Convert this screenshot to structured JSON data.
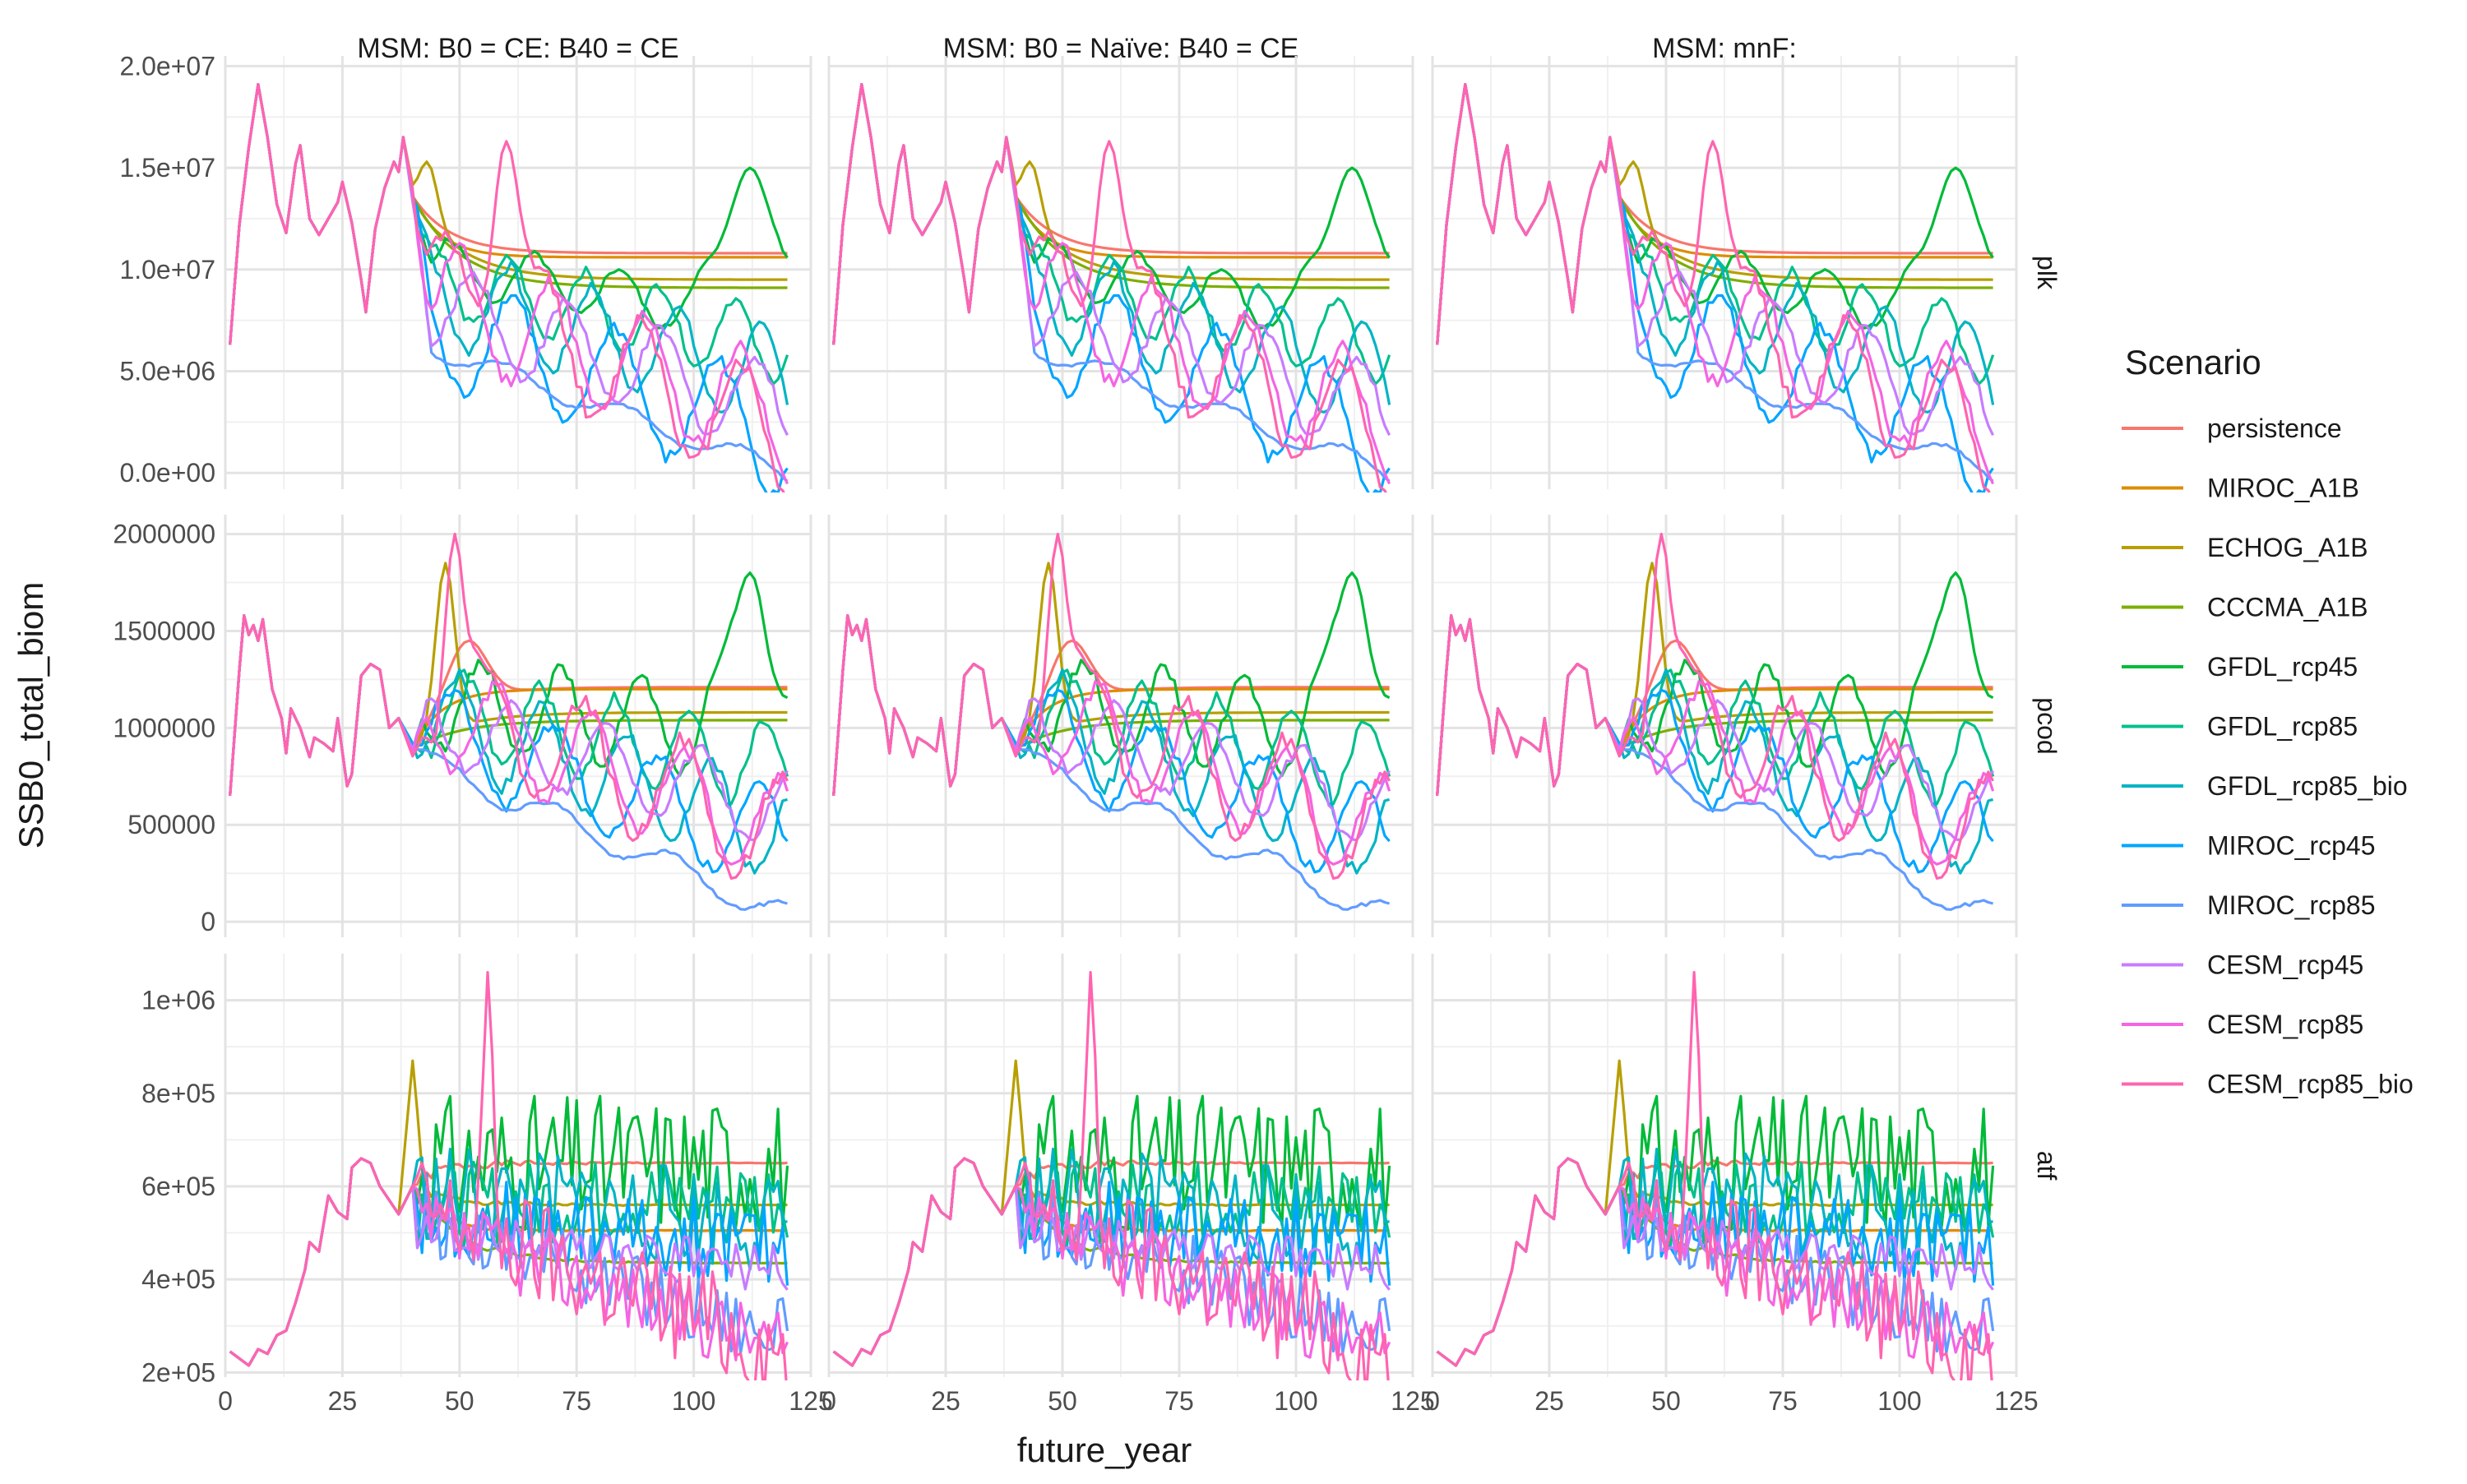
{
  "chart_data": {
    "type": "line",
    "facet_cols": [
      "MSM: B0 = CE: B40 = CE",
      "MSM: B0 = Naïve: B40 = CE",
      "MSM: mnF:"
    ],
    "facet_rows": [
      "plk",
      "pcod",
      "atf"
    ],
    "xlabel": "future_year",
    "ylabel": "SSB0_total_biom",
    "x_range": [
      0,
      125
    ],
    "x_ticks": [
      0,
      25,
      50,
      75,
      100,
      125
    ],
    "grid": true,
    "legend": {
      "title": "Scenario",
      "placement": "right",
      "items": [
        {
          "name": "persistence",
          "color": "#F8766D"
        },
        {
          "name": "MIROC_A1B",
          "color": "#DE8C00"
        },
        {
          "name": "ECHOG_A1B",
          "color": "#B79F00"
        },
        {
          "name": "CCCMA_A1B",
          "color": "#7CAE00"
        },
        {
          "name": "GFDL_rcp45",
          "color": "#00BA38"
        },
        {
          "name": "GFDL_rcp85",
          "color": "#00C08B"
        },
        {
          "name": "GFDL_rcp85_bio",
          "color": "#00B4C4"
        },
        {
          "name": "MIROC_rcp45",
          "color": "#00A5FF"
        },
        {
          "name": "MIROC_rcp85",
          "color": "#619CFF"
        },
        {
          "name": "CESM_rcp45",
          "color": "#C77CFF"
        },
        {
          "name": "CESM_rcp85",
          "color": "#F564E3"
        },
        {
          "name": "CESM_rcp85_bio",
          "color": "#FF64B0"
        }
      ]
    },
    "rows": [
      {
        "species": "plk",
        "ylim": [
          -800000,
          20500000
        ],
        "y_ticks": [
          0,
          5000000,
          10000000,
          15000000,
          20000000
        ],
        "y_tick_labels": [
          "0.0e+00",
          "5.0e+06",
          "1.0e+07",
          "1.5e+07",
          "2.0e+07"
        ],
        "hist": [
          [
            1,
            6300000
          ],
          [
            3,
            12200000
          ],
          [
            5,
            16000000
          ],
          [
            7,
            19100000
          ],
          [
            9,
            16500000
          ],
          [
            11,
            13200000
          ],
          [
            13,
            11800000
          ],
          [
            15,
            15200000
          ],
          [
            16,
            16100000
          ],
          [
            18,
            12500000
          ],
          [
            20,
            11700000
          ],
          [
            22,
            12500000
          ],
          [
            24,
            13300000
          ],
          [
            25,
            14300000
          ],
          [
            27,
            12300000
          ],
          [
            29,
            9500000
          ],
          [
            30,
            7900000
          ],
          [
            32,
            12000000
          ],
          [
            34,
            14000000
          ],
          [
            36,
            15300000
          ],
          [
            37,
            14800000
          ],
          [
            38,
            16500000
          ],
          [
            40,
            13600000
          ]
        ],
        "future": [
          {
            "start": 13600000,
            "type": "flat",
            "level": 10800000,
            "tau": 8
          },
          {
            "start": 13600000,
            "type": "flat",
            "level": 10600000,
            "tau": 6
          },
          {
            "start": 13600000,
            "type": "flat",
            "level": 9500000,
            "tau": 10,
            "bumps": [
              [
                43,
                15300000,
                2
              ]
            ]
          },
          {
            "start": 13600000,
            "type": "flat",
            "level": 9100000,
            "tau": 10
          },
          {
            "start": 13600000,
            "type": "fluct",
            "level": 10400000,
            "end": 7400000,
            "amp": 1300000,
            "per": 18,
            "seed": 5,
            "bumps": [
              [
                112,
                15000000,
                5
              ]
            ]
          },
          {
            "start": 13600000,
            "type": "fluct",
            "level": 9600000,
            "end": 6300000,
            "amp": 1800000,
            "per": 16,
            "seed": 6
          },
          {
            "start": 13600000,
            "type": "fluct",
            "level": 9000000,
            "end": 4500000,
            "amp": 2300000,
            "per": 18,
            "seed": 7
          },
          {
            "start": 13600000,
            "type": "fluct",
            "level": 7500000,
            "end": 1700000,
            "amp": 2800000,
            "per": 22,
            "seed": 8
          },
          {
            "start": 13600000,
            "type": "fluct",
            "level": 6500000,
            "end": 30000,
            "amp": 500000,
            "per": 25,
            "seed": 9
          },
          {
            "start": 13600000,
            "type": "fluct",
            "level": 8500000,
            "end": 3000000,
            "amp": 2200000,
            "per": 20,
            "seed": 10
          },
          {
            "start": 13600000,
            "type": "fluct",
            "level": 9000000,
            "end": 2600000,
            "amp": 2800000,
            "per": 20,
            "seed": 11
          },
          {
            "start": 13600000,
            "type": "fluct",
            "level": 9500000,
            "end": 1500000,
            "amp": 3000000,
            "per": 21,
            "seed": 12,
            "bumps": [
              [
                60,
                16300000,
                3
              ]
            ]
          }
        ]
      },
      {
        "species": "pcod",
        "ylim": [
          -80000,
          2100000
        ],
        "y_ticks": [
          0,
          500000,
          1000000,
          1500000,
          2000000
        ],
        "y_tick_labels": [
          "0",
          "500000",
          "1000000",
          "1500000",
          "2000000"
        ],
        "hist": [
          [
            1,
            650000
          ],
          [
            3,
            1300000
          ],
          [
            4,
            1580000
          ],
          [
            5,
            1480000
          ],
          [
            6,
            1530000
          ],
          [
            7,
            1450000
          ],
          [
            8,
            1560000
          ],
          [
            10,
            1200000
          ],
          [
            12,
            1050000
          ],
          [
            13,
            870000
          ],
          [
            14,
            1100000
          ],
          [
            16,
            1000000
          ],
          [
            18,
            850000
          ],
          [
            19,
            950000
          ],
          [
            21,
            920000
          ],
          [
            23,
            880000
          ],
          [
            24,
            1050000
          ],
          [
            26,
            700000
          ],
          [
            27,
            760000
          ],
          [
            29,
            1270000
          ],
          [
            31,
            1330000
          ],
          [
            33,
            1300000
          ],
          [
            35,
            1000000
          ],
          [
            37,
            1050000
          ],
          [
            40,
            890000
          ]
        ],
        "future": [
          {
            "start": 890000,
            "type": "flat",
            "level": 1210000,
            "tau": 8,
            "bumps": [
              [
                52,
                1450000,
                4
              ]
            ]
          },
          {
            "start": 890000,
            "type": "flat",
            "level": 1200000,
            "tau": 6
          },
          {
            "start": 890000,
            "type": "flat",
            "level": 1080000,
            "tau": 10,
            "bumps": [
              [
                47,
                1850000,
                2
              ]
            ]
          },
          {
            "start": 890000,
            "type": "flat",
            "level": 1040000,
            "tau": 10
          },
          {
            "start": 890000,
            "type": "fluct",
            "level": 1150000,
            "end": 950000,
            "amp": 230000,
            "per": 17,
            "seed": 15,
            "bumps": [
              [
                112,
                1800000,
                4
              ]
            ]
          },
          {
            "start": 890000,
            "type": "fluct",
            "level": 1100000,
            "end": 800000,
            "amp": 220000,
            "per": 16,
            "seed": 16
          },
          {
            "start": 890000,
            "type": "fluct",
            "level": 1100000,
            "end": 450000,
            "amp": 250000,
            "per": 18,
            "seed": 17
          },
          {
            "start": 890000,
            "type": "fluct",
            "level": 1000000,
            "end": 400000,
            "amp": 250000,
            "per": 22,
            "seed": 18
          },
          {
            "start": 890000,
            "type": "fluct",
            "level": 850000,
            "end": 30000,
            "amp": 70000,
            "per": 25,
            "seed": 19
          },
          {
            "start": 890000,
            "type": "fluct",
            "level": 1050000,
            "end": 580000,
            "amp": 200000,
            "per": 20,
            "seed": 20
          },
          {
            "start": 890000,
            "type": "fluct",
            "level": 1100000,
            "end": 480000,
            "amp": 250000,
            "per": 20,
            "seed": 21
          },
          {
            "start": 890000,
            "type": "fluct",
            "level": 1200000,
            "end": 420000,
            "amp": 300000,
            "per": 21,
            "seed": 22,
            "bumps": [
              [
                49,
                2000000,
                2
              ]
            ]
          }
        ]
      },
      {
        "species": "atf",
        "ylim": [
          190000,
          1100000
        ],
        "y_ticks": [
          200000,
          400000,
          600000,
          800000,
          1000000
        ],
        "y_tick_labels": [
          "2e+05",
          "4e+05",
          "6e+05",
          "8e+05",
          "1e+06"
        ],
        "hist": [
          [
            1,
            245000
          ],
          [
            3,
            230000
          ],
          [
            5,
            215000
          ],
          [
            7,
            250000
          ],
          [
            9,
            240000
          ],
          [
            11,
            280000
          ],
          [
            13,
            290000
          ],
          [
            15,
            350000
          ],
          [
            17,
            420000
          ],
          [
            18,
            480000
          ],
          [
            20,
            460000
          ],
          [
            22,
            580000
          ],
          [
            24,
            545000
          ],
          [
            26,
            530000
          ],
          [
            27,
            640000
          ],
          [
            29,
            660000
          ],
          [
            31,
            650000
          ],
          [
            33,
            600000
          ],
          [
            35,
            570000
          ],
          [
            37,
            540000
          ],
          [
            40,
            600000
          ]
        ],
        "future": [
          {
            "start": 600000,
            "type": "flat",
            "level": 650000,
            "tau": 5,
            "jit": 30000
          },
          {
            "start": 600000,
            "type": "flat",
            "level": 505000,
            "tau": 6,
            "jit": 20000
          },
          {
            "start": 600000,
            "type": "flat",
            "level": 560000,
            "tau": 8,
            "jit": 20000,
            "bumps": [
              [
                40,
                870000,
                1
              ]
            ]
          },
          {
            "start": 600000,
            "type": "flat",
            "level": 435000,
            "tau": 10,
            "jit": 25000
          },
          {
            "start": 600000,
            "type": "jag",
            "level": 650000,
            "end": 650000,
            "amp": 150000,
            "seed": 31
          },
          {
            "start": 600000,
            "type": "jag",
            "level": 560000,
            "end": 580000,
            "amp": 90000,
            "seed": 32
          },
          {
            "start": 600000,
            "type": "jag",
            "level": 590000,
            "end": 520000,
            "amp": 110000,
            "seed": 33
          },
          {
            "start": 600000,
            "type": "jag",
            "level": 540000,
            "end": 470000,
            "amp": 90000,
            "seed": 34
          },
          {
            "start": 600000,
            "type": "jag",
            "level": 540000,
            "end": 280000,
            "amp": 80000,
            "seed": 35
          },
          {
            "start": 600000,
            "type": "jag",
            "level": 500000,
            "end": 420000,
            "amp": 50000,
            "seed": 36
          },
          {
            "start": 600000,
            "type": "jag",
            "level": 520000,
            "end": 250000,
            "amp": 80000,
            "seed": 37
          },
          {
            "start": 600000,
            "type": "jag",
            "level": 560000,
            "end": 240000,
            "amp": 120000,
            "seed": 38,
            "bumps": [
              [
                56,
                1060000,
                1
              ]
            ]
          }
        ]
      }
    ]
  }
}
